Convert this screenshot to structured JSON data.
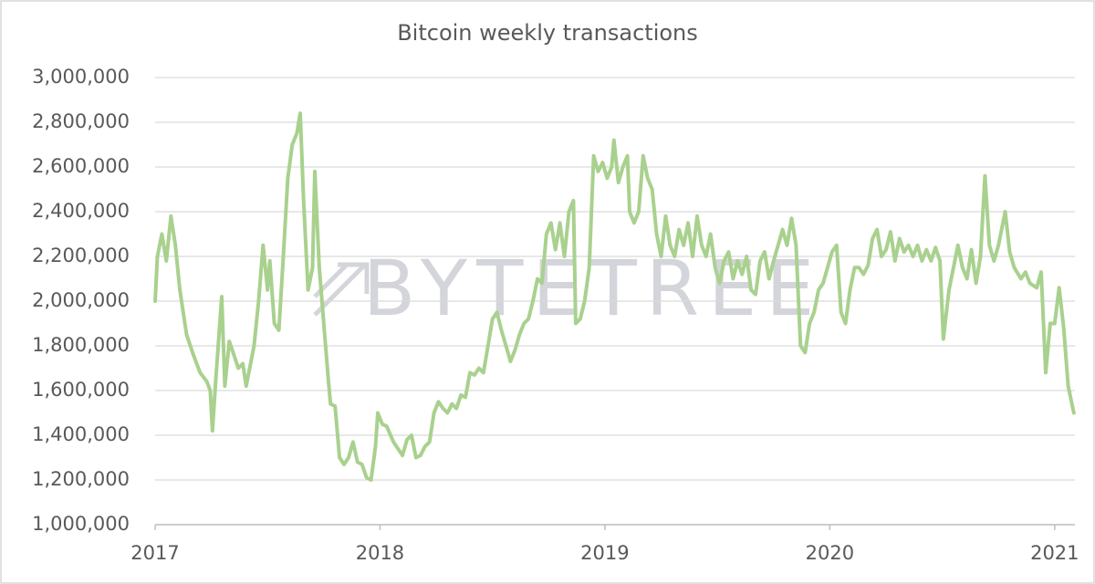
{
  "chart_data": {
    "type": "line",
    "title": "Bitcoin weekly transactions",
    "watermark": "BYTETREE",
    "color": "#a9d18e",
    "grid": true,
    "xlim": [
      2017,
      2021.09
    ],
    "xticks": [
      2017,
      2018,
      2019,
      2020,
      2021
    ],
    "ylim": [
      1000000,
      3000000
    ],
    "yticks": [
      {
        "value": 1000000,
        "label": "1,000,000"
      },
      {
        "value": 1200000,
        "label": "1,200,000"
      },
      {
        "value": 1400000,
        "label": "1,400,000"
      },
      {
        "value": 1600000,
        "label": "1,600,000"
      },
      {
        "value": 1800000,
        "label": "1,800,000"
      },
      {
        "value": 2000000,
        "label": "2,000,000"
      },
      {
        "value": 2200000,
        "label": "2,200,000"
      },
      {
        "value": 2400000,
        "label": "2,400,000"
      },
      {
        "value": 2600000,
        "label": "2,600,000"
      },
      {
        "value": 2800000,
        "label": "2,800,000"
      },
      {
        "value": 3000000,
        "label": "3,000,000"
      }
    ],
    "x": [
      2017.0,
      2017.01,
      2017.03,
      2017.05,
      2017.07,
      2017.09,
      2017.11,
      2017.14,
      2017.17,
      2017.2,
      2017.23,
      2017.245,
      2017.255,
      2017.27,
      2017.296,
      2017.31,
      2017.33,
      2017.35,
      2017.37,
      2017.39,
      2017.405,
      2017.44,
      2017.46,
      2017.48,
      2017.5,
      2017.51,
      2017.53,
      2017.55,
      2017.57,
      2017.59,
      2017.61,
      2017.63,
      2017.645,
      2017.66,
      2017.68,
      2017.7,
      2017.71,
      2017.73,
      2017.75,
      2017.77,
      2017.78,
      2017.8,
      2017.82,
      2017.84,
      2017.86,
      2017.88,
      2017.9,
      2017.92,
      2017.94,
      2017.96,
      2017.98,
      2017.99,
      2018.01,
      2018.03,
      2018.06,
      2018.08,
      2018.1,
      2018.12,
      2018.14,
      2018.16,
      2018.18,
      2018.2,
      2018.22,
      2018.24,
      2018.26,
      2018.28,
      2018.3,
      2018.32,
      2018.34,
      2018.36,
      2018.38,
      2018.4,
      2018.42,
      2018.44,
      2018.46,
      2018.48,
      2018.5,
      2018.52,
      2018.54,
      2018.56,
      2018.58,
      2018.6,
      2018.62,
      2018.64,
      2018.66,
      2018.68,
      2018.7,
      2018.72,
      2018.74,
      2018.76,
      2018.78,
      2018.8,
      2018.82,
      2018.84,
      2018.86,
      2018.87,
      2018.89,
      2018.91,
      2018.93,
      2018.95,
      2018.97,
      2018.99,
      2019.01,
      2019.03,
      2019.04,
      2019.06,
      2019.08,
      2019.1,
      2019.11,
      2019.13,
      2019.15,
      2019.17,
      2019.19,
      2019.21,
      2019.23,
      2019.25,
      2019.27,
      2019.29,
      2019.31,
      2019.33,
      2019.35,
      2019.37,
      2019.39,
      2019.41,
      2019.43,
      2019.45,
      2019.47,
      2019.49,
      2019.51,
      2019.53,
      2019.55,
      2019.57,
      2019.59,
      2019.61,
      2019.63,
      2019.65,
      2019.67,
      2019.69,
      2019.71,
      2019.73,
      2019.75,
      2019.77,
      2019.79,
      2019.81,
      2019.83,
      2019.85,
      2019.87,
      2019.89,
      2019.91,
      2019.93,
      2019.95,
      2019.97,
      2019.99,
      2020.01,
      2020.03,
      2020.05,
      2020.07,
      2020.09,
      2020.11,
      2020.13,
      2020.15,
      2020.17,
      2020.19,
      2020.21,
      2020.23,
      2020.25,
      2020.27,
      2020.29,
      2020.31,
      2020.33,
      2020.35,
      2020.37,
      2020.39,
      2020.41,
      2020.43,
      2020.45,
      2020.47,
      2020.49,
      2020.505,
      2020.53,
      2020.55,
      2020.57,
      2020.59,
      2020.61,
      2020.63,
      2020.65,
      2020.67,
      2020.69,
      2020.71,
      2020.73,
      2020.75,
      2020.78,
      2020.8,
      2020.82,
      2020.85,
      2020.87,
      2020.89,
      2020.92,
      2020.94,
      2020.96,
      2020.98,
      2021.0,
      2021.02,
      2021.04,
      2021.06,
      2021.085
    ],
    "values": [
      2000000,
      2200000,
      2300000,
      2180000,
      2380000,
      2250000,
      2050000,
      1850000,
      1760000,
      1680000,
      1640000,
      1600000,
      1420000,
      1650000,
      2020000,
      1620000,
      1820000,
      1760000,
      1700000,
      1720000,
      1620000,
      1800000,
      2000000,
      2250000,
      2050000,
      2180000,
      1900000,
      1870000,
      2200000,
      2550000,
      2700000,
      2750000,
      2840000,
      2450000,
      2050000,
      2150000,
      2580000,
      2150000,
      1900000,
      1650000,
      1540000,
      1530000,
      1300000,
      1270000,
      1300000,
      1370000,
      1280000,
      1270000,
      1210000,
      1200000,
      1350000,
      1500000,
      1450000,
      1440000,
      1370000,
      1340000,
      1310000,
      1380000,
      1400000,
      1300000,
      1310000,
      1350000,
      1370000,
      1500000,
      1550000,
      1520000,
      1500000,
      1540000,
      1520000,
      1580000,
      1570000,
      1680000,
      1670000,
      1700000,
      1680000,
      1800000,
      1920000,
      1950000,
      1870000,
      1800000,
      1730000,
      1780000,
      1850000,
      1900000,
      1920000,
      2000000,
      2100000,
      2080000,
      2300000,
      2350000,
      2230000,
      2350000,
      2200000,
      2400000,
      2450000,
      1900000,
      1920000,
      2000000,
      2150000,
      2650000,
      2580000,
      2620000,
      2550000,
      2600000,
      2720000,
      2530000,
      2600000,
      2650000,
      2400000,
      2350000,
      2400000,
      2650000,
      2550000,
      2500000,
      2300000,
      2200000,
      2380000,
      2250000,
      2200000,
      2320000,
      2250000,
      2350000,
      2200000,
      2380000,
      2250000,
      2200000,
      2300000,
      2150000,
      2080000,
      2180000,
      2220000,
      2100000,
      2180000,
      2120000,
      2200000,
      2050000,
      2030000,
      2180000,
      2220000,
      2100000,
      2180000,
      2250000,
      2320000,
      2250000,
      2370000,
      2250000,
      1800000,
      1770000,
      1900000,
      1950000,
      2050000,
      2080000,
      2150000,
      2220000,
      2250000,
      1950000,
      1900000,
      2050000,
      2150000,
      2150000,
      2120000,
      2160000,
      2280000,
      2320000,
      2200000,
      2230000,
      2310000,
      2180000,
      2280000,
      2220000,
      2250000,
      2200000,
      2250000,
      2180000,
      2230000,
      2180000,
      2240000,
      2180000,
      1830000,
      2050000,
      2150000,
      2250000,
      2150000,
      2100000,
      2230000,
      2080000,
      2200000,
      2560000,
      2250000,
      2180000,
      2250000,
      2400000,
      2220000,
      2150000,
      2100000,
      2130000,
      2080000,
      2060000,
      2130000,
      1680000,
      1900000,
      1900000,
      2060000,
      1880000,
      1620000,
      1500000
    ]
  }
}
